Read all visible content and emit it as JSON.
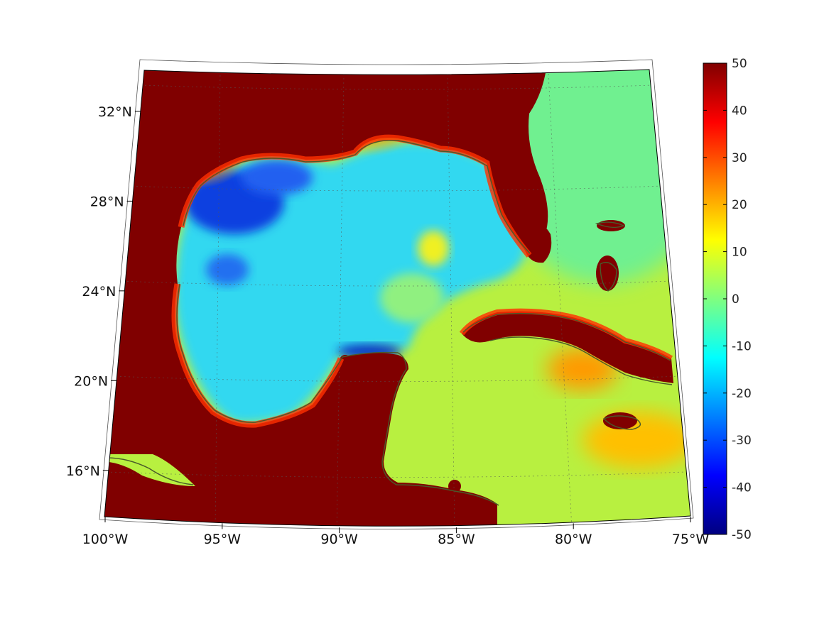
{
  "map": {
    "projection": "conic",
    "longitude_range": [
      -100,
      -75
    ],
    "latitude_range": [
      14,
      33
    ],
    "coastline_color": "#4a5a2a",
    "grid": "dotted",
    "lon_ticks": [
      {
        "value": -100,
        "label": "100°W"
      },
      {
        "value": -95,
        "label": "95°W"
      },
      {
        "value": -90,
        "label": "90°W"
      },
      {
        "value": -85,
        "label": "85°W"
      },
      {
        "value": -80,
        "label": "80°W"
      },
      {
        "value": -75,
        "label": "75°W"
      }
    ],
    "lat_ticks": [
      {
        "value": 32,
        "label": "32°N"
      },
      {
        "value": 28,
        "label": "28°N"
      },
      {
        "value": 24,
        "label": "24°N"
      },
      {
        "value": 20,
        "label": "20°N"
      },
      {
        "value": 16,
        "label": "16°N"
      }
    ]
  },
  "colorbar": {
    "colormap": "jet",
    "range": [
      -50,
      50
    ],
    "ticks": [
      {
        "value": 50,
        "label": "50"
      },
      {
        "value": 40,
        "label": "40"
      },
      {
        "value": 30,
        "label": "30"
      },
      {
        "value": 20,
        "label": "20"
      },
      {
        "value": 10,
        "label": "10"
      },
      {
        "value": 0,
        "label": "0"
      },
      {
        "value": -10,
        "label": "-10"
      },
      {
        "value": -20,
        "label": "-20"
      },
      {
        "value": -30,
        "label": "-30"
      },
      {
        "value": -40,
        "label": "-40"
      },
      {
        "value": -50,
        "label": "-50"
      }
    ]
  }
}
